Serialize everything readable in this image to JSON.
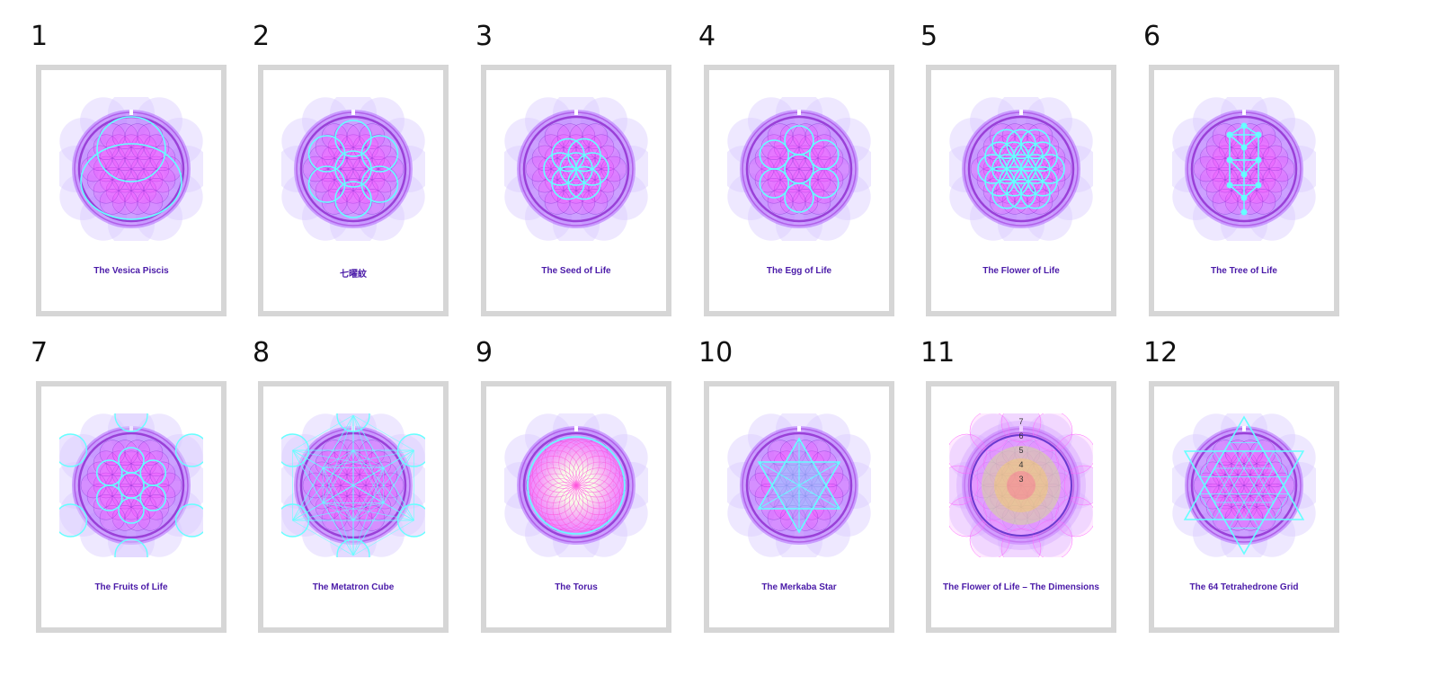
{
  "cards": [
    {
      "number": "1",
      "title": "The Vesica Piscis",
      "motif": "vesica"
    },
    {
      "number": "2",
      "title": "七曜紋",
      "motif": "seven"
    },
    {
      "number": "3",
      "title": "The Seed of Life",
      "motif": "seed"
    },
    {
      "number": "4",
      "title": "The Egg of Life",
      "motif": "egg"
    },
    {
      "number": "5",
      "title": "The Flower of Life",
      "motif": "flower"
    },
    {
      "number": "6",
      "title": "The Tree of Life",
      "motif": "tree"
    },
    {
      "number": "7",
      "title": "The Fruits of Life",
      "motif": "fruits"
    },
    {
      "number": "8",
      "title": "The Metatron Cube",
      "motif": "metatron"
    },
    {
      "number": "9",
      "title": "The Torus",
      "motif": "torus"
    },
    {
      "number": "10",
      "title": "The Merkaba Star",
      "motif": "merkaba"
    },
    {
      "number": "11",
      "title": "The Flower of Life – The Dimensions",
      "motif": "dimensions",
      "dimension_labels": [
        "7",
        "6",
        "5",
        "4",
        "3"
      ]
    },
    {
      "number": "12",
      "title": "The 64 Tetrahedrone Grid",
      "motif": "tetra64"
    }
  ],
  "colors": {
    "frame": "#d6d6d6",
    "title": "#4a1aa8",
    "magenta": "#ff3cff",
    "violet": "#b066ff",
    "lavender": "#d9ccff",
    "cyan": "#66ffff"
  }
}
